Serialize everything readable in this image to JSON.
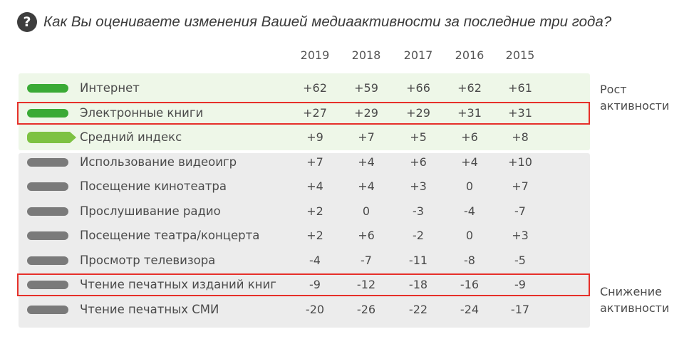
{
  "question": "Как Вы оцениваете изменения Вашей медиаактивности за последние три года?",
  "question_icon": "question-circle-icon",
  "colors": {
    "growth": "#3aaa35",
    "average": "#7dc242",
    "decline": "#7a7a7a",
    "growth_band": "#eef7e8",
    "decline_band": "#ececec",
    "highlight": "#e6302a"
  },
  "chart_data": {
    "type": "table",
    "columns": [
      "2019",
      "2018",
      "2017",
      "2016",
      "2015"
    ],
    "rows": [
      {
        "label": "Интернет",
        "group": "growth",
        "values": [
          "+62",
          "+59",
          "+66",
          "+62",
          "+61"
        ]
      },
      {
        "label": "Электронные книги",
        "group": "growth",
        "values": [
          "+27",
          "+29",
          "+29",
          "+31",
          "+31"
        ],
        "highlighted": true
      },
      {
        "label": "Средний индекс",
        "group": "average",
        "values": [
          "+9",
          "+7",
          "+5",
          "+6",
          "+8"
        ]
      },
      {
        "label": "Использование видеоигр",
        "group": "decline",
        "values": [
          "+7",
          "+4",
          "+6",
          "+4",
          "+10"
        ]
      },
      {
        "label": "Посещение кинотеатра",
        "group": "decline",
        "values": [
          "+4",
          "+4",
          "+3",
          "0",
          "+7"
        ]
      },
      {
        "label": "Прослушивание радио",
        "group": "decline",
        "values": [
          "+2",
          "0",
          "-3",
          "-4",
          "-7"
        ]
      },
      {
        "label": "Посещение театра/концерта",
        "group": "decline",
        "values": [
          "+2",
          "+6",
          "-2",
          "0",
          "+3"
        ]
      },
      {
        "label": "Просмотр телевизора",
        "group": "decline",
        "values": [
          "-4",
          "-7",
          "-11",
          "-8",
          "-5"
        ]
      },
      {
        "label": "Чтение печатных изданий книг",
        "group": "decline",
        "values": [
          "-9",
          "-12",
          "-18",
          "-16",
          "-9"
        ],
        "highlighted": true
      },
      {
        "label": "Чтение печатных СМИ",
        "group": "decline",
        "values": [
          "-20",
          "-26",
          "-22",
          "-24",
          "-17"
        ]
      }
    ],
    "side_labels": {
      "growth": [
        "Рост",
        "активности"
      ],
      "decline": [
        "Снижение",
        "активности"
      ]
    }
  }
}
